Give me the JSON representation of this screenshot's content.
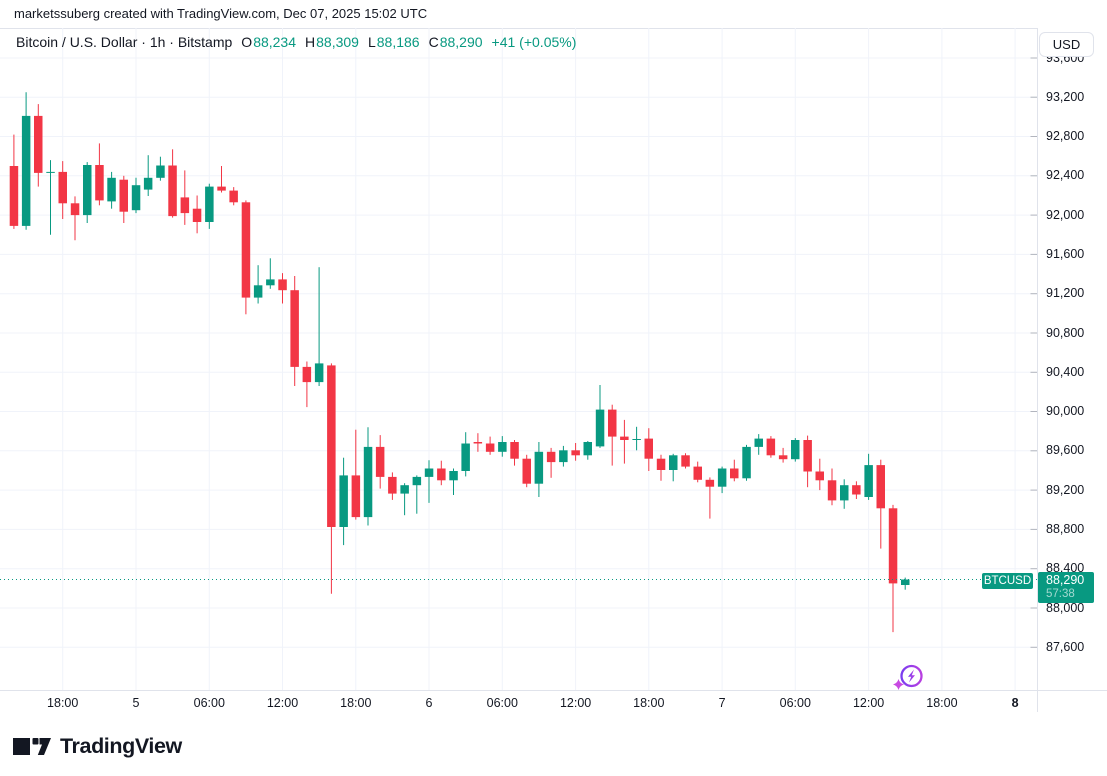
{
  "attribution": "marketssuberg created with TradingView.com, Dec 07, 2025 15:02 UTC",
  "header": {
    "symbol_title": "Bitcoin / U.S. Dollar · 1h · Bitstamp",
    "ohlc": {
      "open_label": "O",
      "open": "88,234",
      "high_label": "H",
      "high": "88,309",
      "low_label": "L",
      "low": "88,186",
      "close_label": "C",
      "close": "88,290",
      "change": "+41 (+0.05%)"
    }
  },
  "price_axis": {
    "currency_button": "USD",
    "last_price": {
      "symbol_label": "BTCUSD",
      "price": "88,290",
      "countdown": "57:38"
    }
  },
  "logo": {
    "text": "TradingView"
  },
  "icons": {
    "event_marker": "lightning-circle-with-sparkle-icon"
  },
  "colors": {
    "up": "#089981",
    "down": "#F23645",
    "text": "#131722",
    "grid": "#f0f3fa",
    "border": "#e0e3eb",
    "axis_tick": "#b2b5be",
    "bg": "#ffffff",
    "accent_purple": "#8b3dd9",
    "accent_magenta": "#c84ae2"
  },
  "chart_data": {
    "type": "candlestick",
    "title": "Bitcoin / U.S. Dollar",
    "symbol": "BTCUSD",
    "interval": "1h",
    "exchange": "Bitstamp",
    "grid": true,
    "ylim": [
      87165,
      93905
    ],
    "current_price": 88290,
    "price_ticks": [
      {
        "label": "93,600",
        "price": 93600
      },
      {
        "label": "93,200",
        "price": 93200
      },
      {
        "label": "92,800",
        "price": 92800
      },
      {
        "label": "92,400",
        "price": 92400
      },
      {
        "label": "92,000",
        "price": 92000
      },
      {
        "label": "91,600",
        "price": 91600
      },
      {
        "label": "91,200",
        "price": 91200
      },
      {
        "label": "90,800",
        "price": 90800
      },
      {
        "label": "90,400",
        "price": 90400
      },
      {
        "label": "90,000",
        "price": 90000
      },
      {
        "label": "89,600",
        "price": 89600
      },
      {
        "label": "89,200",
        "price": 89200
      },
      {
        "label": "88,800",
        "price": 88800
      },
      {
        "label": "88,400",
        "price": 88400
      },
      {
        "label": "88,000",
        "price": 88000
      },
      {
        "label": "87,600",
        "price": 87600
      }
    ],
    "time_ticks": [
      {
        "label": "18:00",
        "k": 4,
        "bold": false
      },
      {
        "label": "5",
        "k": 10,
        "bold": false
      },
      {
        "label": "06:00",
        "k": 16,
        "bold": false
      },
      {
        "label": "12:00",
        "k": 22,
        "bold": false
      },
      {
        "label": "18:00",
        "k": 28,
        "bold": false
      },
      {
        "label": "6",
        "k": 34,
        "bold": false
      },
      {
        "label": "06:00",
        "k": 40,
        "bold": false
      },
      {
        "label": "12:00",
        "k": 46,
        "bold": false
      },
      {
        "label": "18:00",
        "k": 52,
        "bold": false
      },
      {
        "label": "7",
        "k": 58,
        "bold": false
      },
      {
        "label": "06:00",
        "k": 64,
        "bold": false
      },
      {
        "label": "12:00",
        "k": 70,
        "bold": false
      },
      {
        "label": "18:00",
        "k": 76,
        "bold": false
      },
      {
        "label": "8",
        "k": 82,
        "bold": true
      }
    ],
    "candles_columns": [
      "time",
      "open",
      "high",
      "low",
      "close"
    ],
    "candles": [
      [
        "Dec 4 14:00",
        92500,
        92820,
        91860,
        91890
      ],
      [
        "Dec 4 15:00",
        91890,
        93250,
        91850,
        93010
      ],
      [
        "Dec 4 16:00",
        93010,
        93130,
        92290,
        92430
      ],
      [
        "Dec 4 17:00",
        92430,
        92560,
        91800,
        92440
      ],
      [
        "Dec 4 18:00",
        92440,
        92550,
        91960,
        92120
      ],
      [
        "Dec 4 19:00",
        92120,
        92190,
        91745,
        92000
      ],
      [
        "Dec 4 20:00",
        92000,
        92540,
        91920,
        92510
      ],
      [
        "Dec 4 21:00",
        92510,
        92730,
        92100,
        92150
      ],
      [
        "Dec 4 22:00",
        92140,
        92440,
        92065,
        92380
      ],
      [
        "Dec 4 23:00",
        92360,
        92400,
        91920,
        92035
      ],
      [
        "Dec 5 00:00",
        92050,
        92380,
        92020,
        92305
      ],
      [
        "Dec 5 01:00",
        92260,
        92610,
        92195,
        92380
      ],
      [
        "Dec 5 02:00",
        92380,
        92595,
        92350,
        92505
      ],
      [
        "Dec 5 03:00",
        92505,
        92670,
        91975,
        91990
      ],
      [
        "Dec 5 04:00",
        92180,
        92455,
        91900,
        92020
      ],
      [
        "Dec 5 05:00",
        92065,
        92200,
        91815,
        91930
      ],
      [
        "Dec 5 06:00",
        91930,
        92320,
        91860,
        92290
      ],
      [
        "Dec 5 07:00",
        92290,
        92500,
        92230,
        92250
      ],
      [
        "Dec 5 08:00",
        92250,
        92285,
        92100,
        92130
      ],
      [
        "Dec 5 09:00",
        92130,
        92150,
        90990,
        91160
      ],
      [
        "Dec 5 10:00",
        91160,
        91490,
        91100,
        91285
      ],
      [
        "Dec 5 11:00",
        91285,
        91560,
        91250,
        91345
      ],
      [
        "Dec 5 12:00",
        91345,
        91410,
        91100,
        91235
      ],
      [
        "Dec 5 13:00",
        91235,
        91380,
        90260,
        90455
      ],
      [
        "Dec 5 14:00",
        90455,
        90510,
        90045,
        90300
      ],
      [
        "Dec 5 15:00",
        90300,
        91470,
        90260,
        90490
      ],
      [
        "Dec 5 16:00",
        90470,
        90490,
        88145,
        88825
      ],
      [
        "Dec 5 17:00",
        88825,
        89530,
        88640,
        89350
      ],
      [
        "Dec 5 18:00",
        89350,
        89815,
        88900,
        88925
      ],
      [
        "Dec 5 19:00",
        88925,
        89840,
        88840,
        89640
      ],
      [
        "Dec 5 20:00",
        89640,
        89760,
        89215,
        89335
      ],
      [
        "Dec 5 21:00",
        89335,
        89380,
        89100,
        89165
      ],
      [
        "Dec 5 22:00",
        89165,
        89270,
        88945,
        89250
      ],
      [
        "Dec 5 23:00",
        89250,
        89350,
        88960,
        89335
      ],
      [
        "Dec 6 00:00",
        89335,
        89505,
        89070,
        89420
      ],
      [
        "Dec 6 01:00",
        89420,
        89500,
        89250,
        89300
      ],
      [
        "Dec 6 02:00",
        89300,
        89420,
        89150,
        89395
      ],
      [
        "Dec 6 03:00",
        89395,
        89790,
        89340,
        89675
      ],
      [
        "Dec 6 04:00",
        89690,
        89780,
        89590,
        89675
      ],
      [
        "Dec 6 05:00",
        89675,
        89745,
        89560,
        89590
      ],
      [
        "Dec 6 06:00",
        89590,
        89750,
        89540,
        89690
      ],
      [
        "Dec 6 07:00",
        89690,
        89710,
        89450,
        89520
      ],
      [
        "Dec 6 08:00",
        89520,
        89560,
        89230,
        89265
      ],
      [
        "Dec 6 09:00",
        89265,
        89690,
        89130,
        89590
      ],
      [
        "Dec 6 10:00",
        89590,
        89630,
        89325,
        89485
      ],
      [
        "Dec 6 11:00",
        89485,
        89650,
        89440,
        89605
      ],
      [
        "Dec 6 12:00",
        89605,
        89680,
        89500,
        89555
      ],
      [
        "Dec 6 13:00",
        89555,
        89700,
        89510,
        89690
      ],
      [
        "Dec 6 14:00",
        89645,
        90270,
        89630,
        90020
      ],
      [
        "Dec 6 15:00",
        90020,
        90070,
        89450,
        89745
      ],
      [
        "Dec 6 16:00",
        89745,
        89915,
        89470,
        89710
      ],
      [
        "Dec 6 17:00",
        89710,
        89845,
        89605,
        89720
      ],
      [
        "Dec 6 18:00",
        89725,
        89830,
        89395,
        89520
      ],
      [
        "Dec 6 19:00",
        89520,
        89560,
        89295,
        89405
      ],
      [
        "Dec 6 20:00",
        89405,
        89570,
        89290,
        89555
      ],
      [
        "Dec 6 21:00",
        89555,
        89575,
        89420,
        89440
      ],
      [
        "Dec 6 22:00",
        89440,
        89490,
        89280,
        89305
      ],
      [
        "Dec 6 23:00",
        89305,
        89330,
        88910,
        89235
      ],
      [
        "Dec 7 00:00",
        89235,
        89440,
        89170,
        89420
      ],
      [
        "Dec 7 01:00",
        89420,
        89510,
        89290,
        89320
      ],
      [
        "Dec 7 02:00",
        89320,
        89660,
        89295,
        89640
      ],
      [
        "Dec 7 03:00",
        89640,
        89770,
        89560,
        89725
      ],
      [
        "Dec 7 04:00",
        89725,
        89750,
        89530,
        89555
      ],
      [
        "Dec 7 05:00",
        89555,
        89630,
        89480,
        89515
      ],
      [
        "Dec 7 06:00",
        89515,
        89730,
        89490,
        89710
      ],
      [
        "Dec 7 07:00",
        89710,
        89755,
        89230,
        89390
      ],
      [
        "Dec 7 08:00",
        89390,
        89520,
        89200,
        89300
      ],
      [
        "Dec 7 09:00",
        89300,
        89420,
        89045,
        89095
      ],
      [
        "Dec 7 10:00",
        89095,
        89310,
        89010,
        89250
      ],
      [
        "Dec 7 11:00",
        89250,
        89290,
        89110,
        89155
      ],
      [
        "Dec 7 12:00",
        89130,
        89570,
        89100,
        89455
      ],
      [
        "Dec 7 13:00",
        89455,
        89510,
        88605,
        89015
      ],
      [
        "Dec 7 14:00",
        89015,
        89050,
        87755,
        88250
      ],
      [
        "Dec 7 15:00",
        88234,
        88309,
        88186,
        88290
      ]
    ]
  }
}
